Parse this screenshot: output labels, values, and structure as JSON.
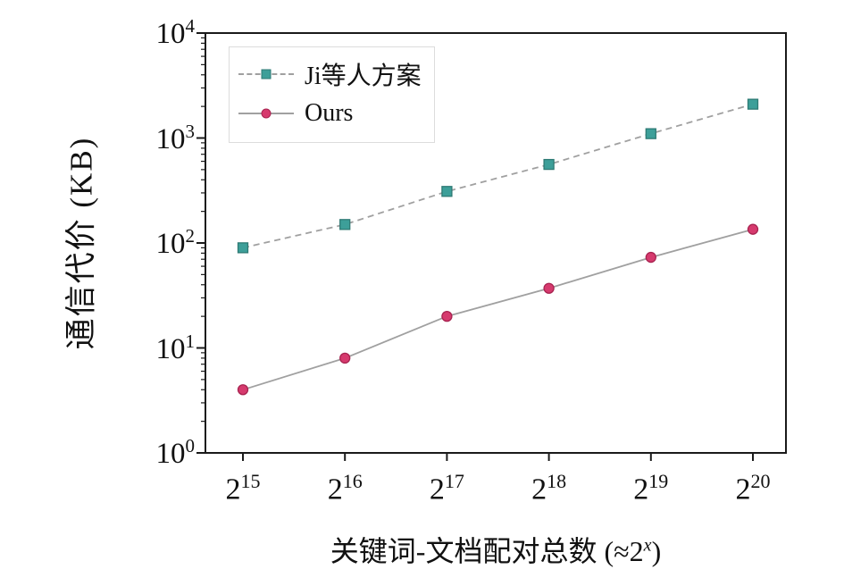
{
  "chart_data": {
    "type": "line",
    "x_base": "2",
    "x_exponents": [
      15,
      16,
      17,
      18,
      19,
      20
    ],
    "series": [
      {
        "name": "Ji等人方案",
        "values": [
          90,
          150,
          310,
          560,
          1100,
          2100
        ],
        "marker": "square",
        "marker_color": "#3d9f99",
        "marker_edge": "#2e7a74",
        "line_color": "#a0a0a0",
        "line_style": "dashed"
      },
      {
        "name": "Ours",
        "values": [
          4,
          8,
          20,
          37,
          73,
          135
        ],
        "marker": "circle",
        "marker_color": "#d63a6e",
        "marker_edge": "#a82350",
        "line_color": "#a0a0a0",
        "line_style": "solid"
      }
    ],
    "ylabel": "通信代价 (KB)",
    "xlabel_parts": {
      "pre": "关键词-文档配对总数 (≈2",
      "sup": "x",
      "post": ")"
    },
    "ylim": [
      1,
      10000
    ],
    "y_ticks": [
      1,
      10,
      100,
      1000,
      10000
    ],
    "y_scale": "log",
    "grid": false,
    "legend_position": "top-left",
    "frame_color": "#1a1a1a"
  }
}
